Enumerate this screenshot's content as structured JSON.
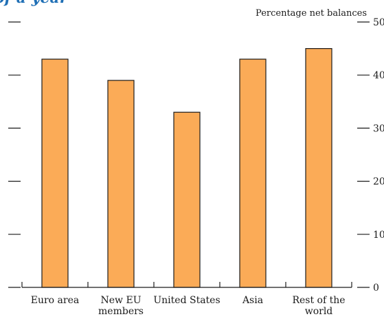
{
  "header": {
    "partial_title": "of a year"
  },
  "chart_data": {
    "type": "bar",
    "categories": [
      [
        "Euro area"
      ],
      [
        "New EU",
        "members"
      ],
      [
        "United States"
      ],
      [
        "Asia"
      ],
      [
        "Rest of the",
        "world"
      ]
    ],
    "values": [
      43,
      39,
      33,
      43,
      45
    ],
    "ylabel": "Percentage net balances",
    "ylim": [
      0,
      50
    ],
    "yticks": [
      0,
      10,
      20,
      30,
      40,
      50
    ],
    "ytick_labels": [
      "0",
      "10",
      "20",
      "30",
      "40",
      "50"
    ],
    "grid": false,
    "legend": "none",
    "colors": {
      "bar_fill": "#fbab57",
      "bar_stroke": "#1a1a1a",
      "axis": "#1a1a1a",
      "title": "#1f6fb5",
      "text": "#1a1a1a"
    }
  }
}
